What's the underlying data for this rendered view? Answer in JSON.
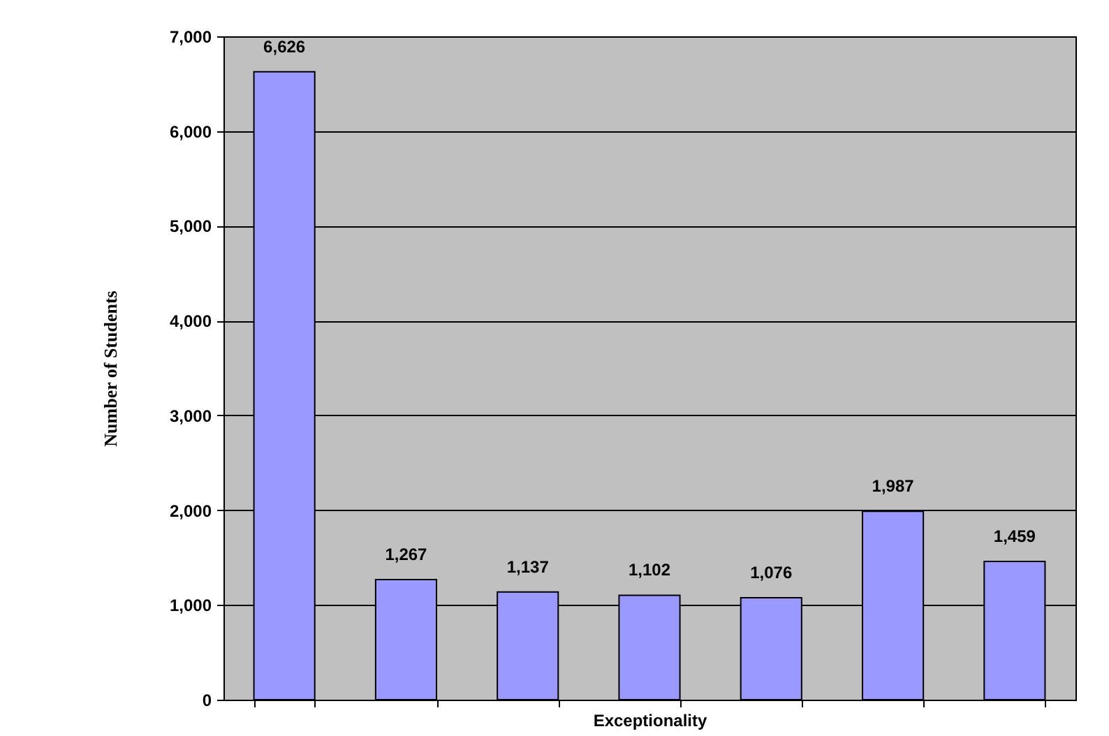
{
  "chart_data": {
    "type": "bar",
    "xlabel": "Exceptionality",
    "ylabel": "Number of Students",
    "categories": [
      null,
      null,
      null,
      null,
      null,
      null,
      null
    ],
    "values": [
      6626,
      1267,
      1137,
      1102,
      1076,
      1987,
      1459
    ],
    "value_labels": [
      "6,626",
      "1,267",
      "1,137",
      "1,102",
      "1,076",
      "1,987",
      "1,459"
    ],
    "color": "#9999ff",
    "ylim": [
      0,
      7000
    ],
    "yticks": [
      0,
      {
        "value": 1000,
        "label": "1,000"
      },
      {
        "value": 2000,
        "label": "2,000"
      },
      {
        "value": 3000,
        "label": "3,000"
      },
      {
        "value": 4000,
        "label": "4,000"
      },
      {
        "value": 5000,
        "label": "5,000"
      },
      {
        "value": 6000,
        "label": "6,000"
      },
      {
        "value": 7000,
        "label": "7,000"
      }
    ],
    "grid": "y",
    "tick_labels": "y"
  }
}
